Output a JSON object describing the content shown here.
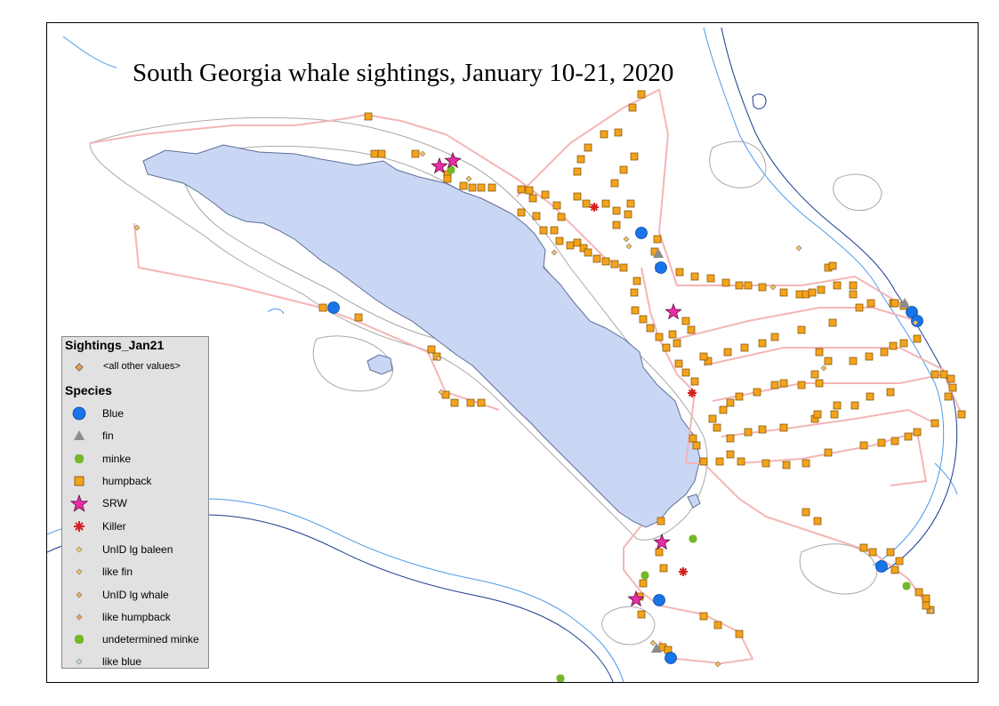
{
  "title": "South Georgia whale sightings, January 10-21, 2020",
  "colors": {
    "island_fill": "#c9d7f5",
    "island_stroke": "#5f6e96",
    "contour_gray": "#a8a8a8",
    "contour_blue": "#4c9be8",
    "contour_navy": "#1b3b8f",
    "track": "#f4b5b5",
    "humpback": "#f4a31c",
    "blue": "#1874e8",
    "fin": "#8c8c8c",
    "minke": "#74b82a",
    "srw": "#e82ea6",
    "killer": "#d62020",
    "small_symbol": "#f6c25a"
  },
  "legend": {
    "layer_title": "Sightings_Jan21",
    "other_values_label": "<all other values>",
    "species_heading": "Species",
    "items": [
      {
        "label": "Blue",
        "symbol": "circle-icon"
      },
      {
        "label": "fin",
        "symbol": "triangle-icon"
      },
      {
        "label": "minke",
        "symbol": "rounded-square-icon"
      },
      {
        "label": "humpback",
        "symbol": "square-icon"
      },
      {
        "label": "SRW",
        "symbol": "star-icon"
      },
      {
        "label": "Killer",
        "symbol": "asterisk-icon"
      },
      {
        "label": "UnID lg baleen",
        "symbol": "small-diamond-icon"
      },
      {
        "label": "like fin",
        "symbol": "small-diamond-icon"
      },
      {
        "label": "UnID lg whale",
        "symbol": "small-diamond-icon"
      },
      {
        "label": "like humpback",
        "symbol": "small-diamond-icon"
      },
      {
        "label": "undetermined minke",
        "symbol": "rounded-square-icon"
      },
      {
        "label": "like blue",
        "symbol": "small-diamond-icon"
      }
    ]
  }
}
